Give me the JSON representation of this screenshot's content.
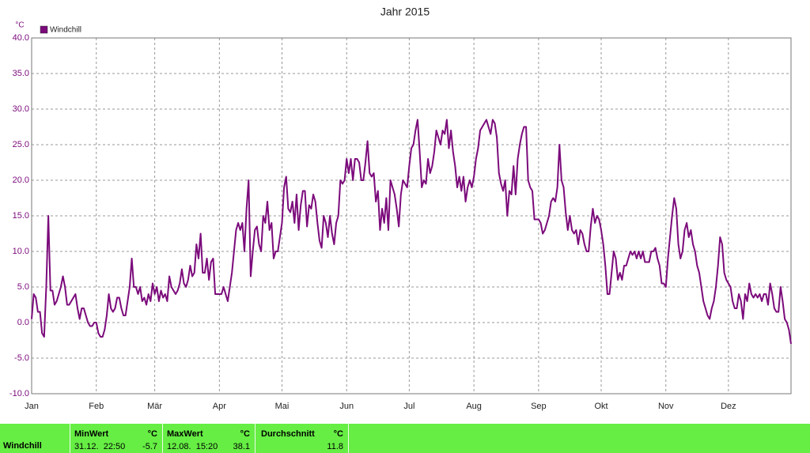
{
  "chart_data": {
    "type": "line",
    "title": "Jahr 2015",
    "y_unit": "°C",
    "categories": [
      "Jan",
      null,
      null,
      null,
      null,
      null,
      null,
      null,
      null,
      null,
      null,
      null,
      null,
      null,
      null,
      null,
      null,
      null,
      null,
      null,
      null,
      null,
      null,
      null,
      null,
      null,
      null,
      null,
      null,
      null,
      null,
      "Feb",
      null,
      null,
      null,
      null,
      null,
      null,
      null,
      null,
      null,
      null,
      null,
      null,
      null,
      null,
      null,
      null,
      null,
      null,
      null,
      null,
      null,
      null,
      null,
      null,
      null,
      null,
      null,
      "Mär",
      null,
      null,
      null,
      null,
      null,
      null,
      null,
      null,
      null,
      null,
      null,
      null,
      null,
      null,
      null,
      null,
      null,
      null,
      null,
      null,
      null,
      null,
      null,
      null,
      null,
      null,
      null,
      null,
      null,
      null,
      "Apr",
      null,
      null,
      null,
      null,
      null,
      null,
      null,
      null,
      null,
      null,
      null,
      null,
      null,
      null,
      null,
      null,
      null,
      null,
      null,
      null,
      null,
      null,
      null,
      null,
      null,
      null,
      null,
      null,
      null,
      "Mai",
      null,
      null,
      null,
      null,
      null,
      null,
      null,
      null,
      null,
      null,
      null,
      null,
      null,
      null,
      null,
      null,
      null,
      null,
      null,
      null,
      null,
      null,
      null,
      null,
      null,
      null,
      null,
      null,
      null,
      null,
      "Jun",
      null,
      null,
      null,
      null,
      null,
      null,
      null,
      null,
      null,
      null,
      null,
      null,
      null,
      null,
      null,
      null,
      null,
      null,
      null,
      null,
      null,
      null,
      null,
      null,
      null,
      null,
      null,
      null,
      null,
      "Jul",
      null,
      null,
      null,
      null,
      null,
      null,
      null,
      null,
      null,
      null,
      null,
      null,
      null,
      null,
      null,
      null,
      null,
      null,
      null,
      null,
      null,
      null,
      null,
      null,
      null,
      null,
      null,
      null,
      null,
      null,
      "Aug",
      null,
      null,
      null,
      null,
      null,
      null,
      null,
      null,
      null,
      null,
      null,
      null,
      null,
      null,
      null,
      null,
      null,
      null,
      null,
      null,
      null,
      null,
      null,
      null,
      null,
      null,
      null,
      null,
      null,
      null,
      "Sep",
      null,
      null,
      null,
      null,
      null,
      null,
      null,
      null,
      null,
      null,
      null,
      null,
      null,
      null,
      null,
      null,
      null,
      null,
      null,
      null,
      null,
      null,
      null,
      null,
      null,
      null,
      null,
      null,
      null,
      "Okt",
      null,
      null,
      null,
      null,
      null,
      null,
      null,
      null,
      null,
      null,
      null,
      null,
      null,
      null,
      null,
      null,
      null,
      null,
      null,
      null,
      null,
      null,
      null,
      null,
      null,
      null,
      null,
      null,
      null,
      null,
      "Nov",
      null,
      null,
      null,
      null,
      null,
      null,
      null,
      null,
      null,
      null,
      null,
      null,
      null,
      null,
      null,
      null,
      null,
      null,
      null,
      null,
      null,
      null,
      null,
      null,
      null,
      null,
      null,
      null,
      null,
      "Dez",
      null,
      null,
      null,
      null,
      null,
      null,
      null,
      null,
      null,
      null,
      null,
      null,
      null,
      null,
      null,
      null,
      null,
      null,
      null,
      null,
      null,
      null,
      null,
      null,
      null,
      null,
      null,
      null,
      null,
      null
    ],
    "series": [
      {
        "name": "Windchill",
        "color": "#7b0a7b",
        "values": [
          0.5,
          4,
          3.5,
          1.5,
          1.5,
          -1.5,
          -2,
          5,
          15,
          4.5,
          4.5,
          2.5,
          3,
          4,
          5,
          6.5,
          5,
          2.5,
          2.5,
          3,
          3.5,
          4,
          2,
          0.5,
          2,
          2,
          1,
          0,
          -0.5,
          -0.5,
          0,
          0,
          -1.5,
          -2,
          -2,
          -1,
          1,
          4,
          2,
          1.5,
          2,
          3.5,
          3.5,
          2,
          1,
          1,
          3,
          5,
          9,
          5,
          5,
          4,
          5,
          3,
          3.5,
          2.5,
          4,
          3,
          5.5,
          4,
          5,
          3,
          4.5,
          3.5,
          4,
          3,
          6.5,
          5,
          4.5,
          4,
          4.5,
          5.5,
          7.5,
          5.5,
          5,
          6,
          8,
          6.5,
          7,
          11,
          9,
          12.5,
          7,
          7,
          9,
          6,
          8.5,
          9,
          4,
          4,
          4,
          4,
          5,
          4,
          3,
          5,
          7,
          10,
          13,
          14,
          13,
          14,
          10,
          16,
          20,
          6.5,
          10,
          13,
          13.5,
          11,
          10,
          15,
          14,
          17,
          13,
          14,
          9,
          10,
          10,
          12,
          14,
          19,
          20.5,
          16,
          15.5,
          17,
          14,
          18,
          13,
          16.5,
          18.5,
          18.5,
          13.5,
          16.5,
          16,
          18,
          17,
          14,
          11.5,
          10.5,
          15,
          14,
          12,
          15,
          12.5,
          11,
          14,
          15,
          20,
          19.5,
          20,
          23,
          21,
          23,
          20,
          23,
          23,
          22.5,
          20,
          20,
          22.5,
          25.5,
          21,
          20.5,
          21,
          17,
          18.5,
          13,
          16,
          14,
          17.5,
          13,
          20,
          19,
          18,
          16,
          13.5,
          18,
          20,
          19.5,
          19,
          22,
          24.5,
          25,
          27,
          28.5,
          24,
          19,
          20,
          19.5,
          23,
          21,
          22,
          24,
          27,
          26,
          25,
          27,
          26.5,
          28.5,
          24.5,
          27,
          24,
          22,
          19,
          20.5,
          18.5,
          20.5,
          17,
          19,
          20,
          19,
          20.5,
          23,
          24.5,
          27,
          27.5,
          28,
          28.5,
          27.5,
          26.5,
          28.5,
          28,
          26,
          21,
          19.5,
          18.5,
          20,
          15,
          18.5,
          18,
          22,
          18,
          23,
          25,
          26.5,
          27.5,
          27.5,
          20,
          19,
          18.5,
          14.5,
          14.5,
          14.5,
          14,
          12.5,
          13,
          14,
          15,
          17,
          17.5,
          17,
          19,
          25,
          20,
          19,
          15.5,
          13,
          15,
          13,
          12.5,
          13,
          11,
          13,
          12.5,
          11,
          10,
          10,
          13.5,
          16,
          14,
          15,
          14.5,
          13,
          11,
          8,
          4,
          4,
          7,
          10,
          9,
          6,
          7,
          6,
          8,
          8,
          9,
          10,
          9.5,
          10,
          9,
          10,
          9,
          10,
          8.5,
          8.5,
          8.5,
          10,
          10,
          10.5,
          9,
          8,
          5.5,
          5.5,
          5,
          9,
          12,
          15,
          17.5,
          16,
          11,
          9,
          10,
          13,
          14,
          12,
          13,
          11,
          10,
          8,
          7,
          5,
          3,
          2,
          1,
          0.5,
          2,
          3,
          5,
          8,
          12,
          11,
          7,
          6,
          5.5,
          5,
          3,
          2,
          2,
          4,
          3,
          0.5,
          4,
          3,
          5.5,
          4,
          3.5,
          4,
          3.5,
          4,
          3,
          4,
          4,
          2.5,
          5.5,
          4,
          2,
          1.5,
          1.5,
          5,
          3,
          0.5,
          0,
          -1,
          -3
        ]
      }
    ],
    "ylim": [
      -10,
      40
    ],
    "yticks": [
      {
        "value": -10,
        "label": "-10.0"
      },
      {
        "value": -5,
        "label": "-5.0"
      },
      {
        "value": 0,
        "label": "0.0"
      },
      {
        "value": 5,
        "label": "5.0"
      },
      {
        "value": 10,
        "label": "10.0"
      },
      {
        "value": 15,
        "label": "15.0"
      },
      {
        "value": 20,
        "label": "20.0"
      },
      {
        "value": 25,
        "label": "25.0"
      },
      {
        "value": 30,
        "label": "30.0"
      },
      {
        "value": 35,
        "label": "35.0"
      },
      {
        "value": 40,
        "label": "40.0"
      }
    ],
    "grid": true,
    "legend": "top-left"
  },
  "stats": {
    "name": "Windchill",
    "min": {
      "label": "MinWert",
      "unit": "°C",
      "time": "31.12.  22:50",
      "value": "-5.7"
    },
    "max": {
      "label": "MaxWert",
      "unit": "°C",
      "time": "12.08.  15:20",
      "value": "38.1"
    },
    "avg": {
      "label": "Durchschnitt",
      "unit": "°C",
      "value": "11.8"
    }
  }
}
